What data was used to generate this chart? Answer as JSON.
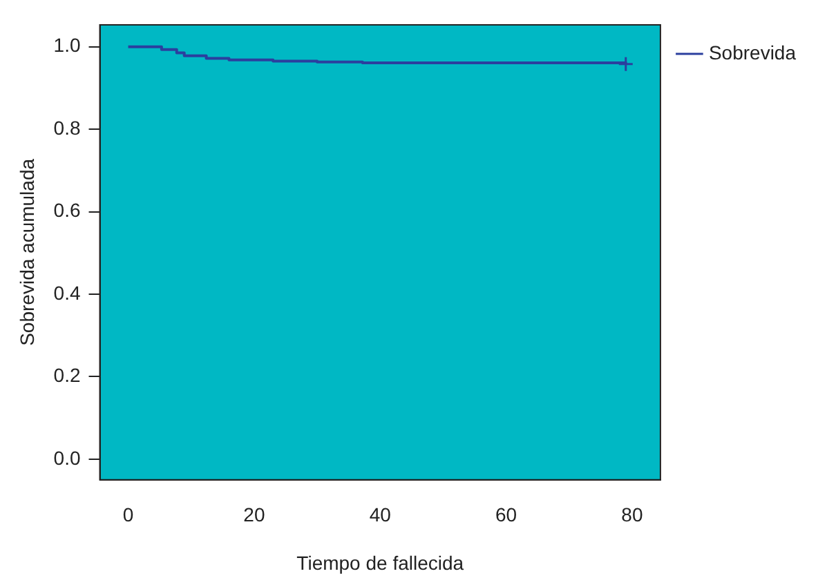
{
  "chart_data": {
    "type": "step",
    "xlabel": "Tiempo de fallecida",
    "ylabel": "Sobrevida acumulada",
    "x": [
      0,
      5.3,
      7.7,
      8.9,
      12.4,
      16,
      23,
      30,
      37.2,
      79
    ],
    "series": [
      {
        "name": "Sobrevida",
        "color": "#2b3f9e",
        "values": [
          1.0,
          0.993,
          0.985,
          0.978,
          0.972,
          0.968,
          0.965,
          0.963,
          0.961,
          0.958
        ]
      },
      {
        "type": "scatter",
        "color": "#2b3f9e",
        "x": [
          79
        ],
        "values": [
          0.958
        ],
        "marker": "cross"
      }
    ],
    "xlim": [
      -4.5,
      84.5
    ],
    "xticks": [
      0,
      20,
      40,
      60,
      80
    ],
    "ylim": [
      -0.05,
      1.053
    ],
    "yticks": [
      {
        "value": 0,
        "label": "0.0"
      },
      {
        "value": 0.2,
        "label": "0.2"
      },
      {
        "value": 0.4,
        "label": "0.4"
      },
      {
        "value": 0.6,
        "label": "0.6"
      },
      {
        "value": 0.8,
        "label": "0.8"
      },
      {
        "value": 1,
        "label": "1.0"
      }
    ],
    "legend": "top right",
    "grid": false
  }
}
